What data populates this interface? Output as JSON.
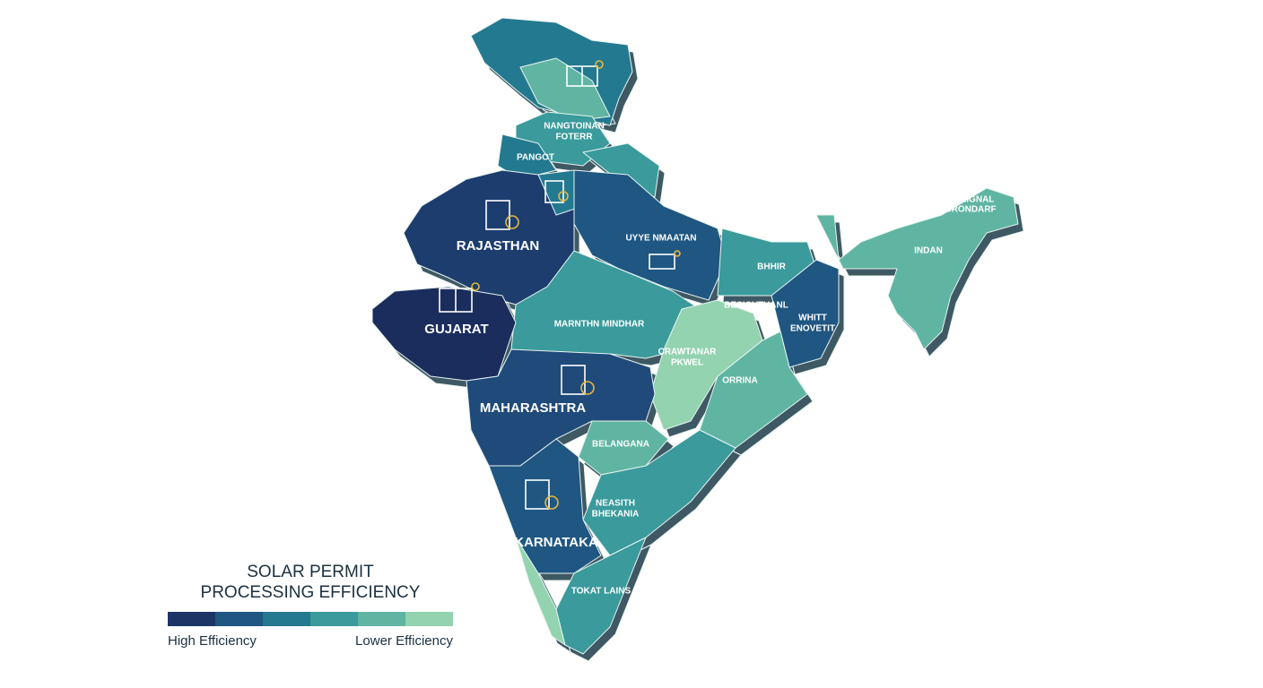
{
  "regions": [
    {
      "label": [
        "NANGTOINAN",
        "FOTERR"
      ]
    },
    {
      "label": [
        "PANGOT"
      ]
    },
    {
      "label": [
        "RAJASTHAN"
      ]
    },
    {
      "label": [
        "GUJARAT"
      ]
    },
    {
      "label": [
        "UYYE NMAATAN"
      ]
    },
    {
      "label": [
        "MARNTHN MINDHAR"
      ]
    },
    {
      "label": [
        "MAHARASHTRA"
      ]
    },
    {
      "label": [
        "BELANGANA"
      ]
    },
    {
      "label": [
        "NEASITH",
        "BHEKANIA"
      ]
    },
    {
      "label": [
        "KARNATAKA"
      ]
    },
    {
      "label": [
        "TOKAT LAINS"
      ]
    },
    {
      "label": [
        "BHHIR"
      ]
    },
    {
      "label": [
        "BESIOVTHANL"
      ]
    },
    {
      "label": [
        "WHITT",
        "ENOVETIT"
      ]
    },
    {
      "label": [
        "CRAWTANAR",
        "PKWEL"
      ]
    },
    {
      "label": [
        "ORRINA"
      ]
    },
    {
      "label": [
        "AURIGNAL",
        "BRONDARF"
      ]
    },
    {
      "label": [
        "INDAN"
      ]
    }
  ],
  "legend": {
    "title": [
      "SOLAR PERMIT",
      "PROCESSING EFFICIENCY"
    ],
    "colors": [
      "#1c3566",
      "#1f5682",
      "#23798f",
      "#3a9a9c",
      "#5fb5a2",
      "#93d3b0"
    ],
    "left_label": "High Efficiency",
    "right_label": "Lower Efficiency"
  }
}
